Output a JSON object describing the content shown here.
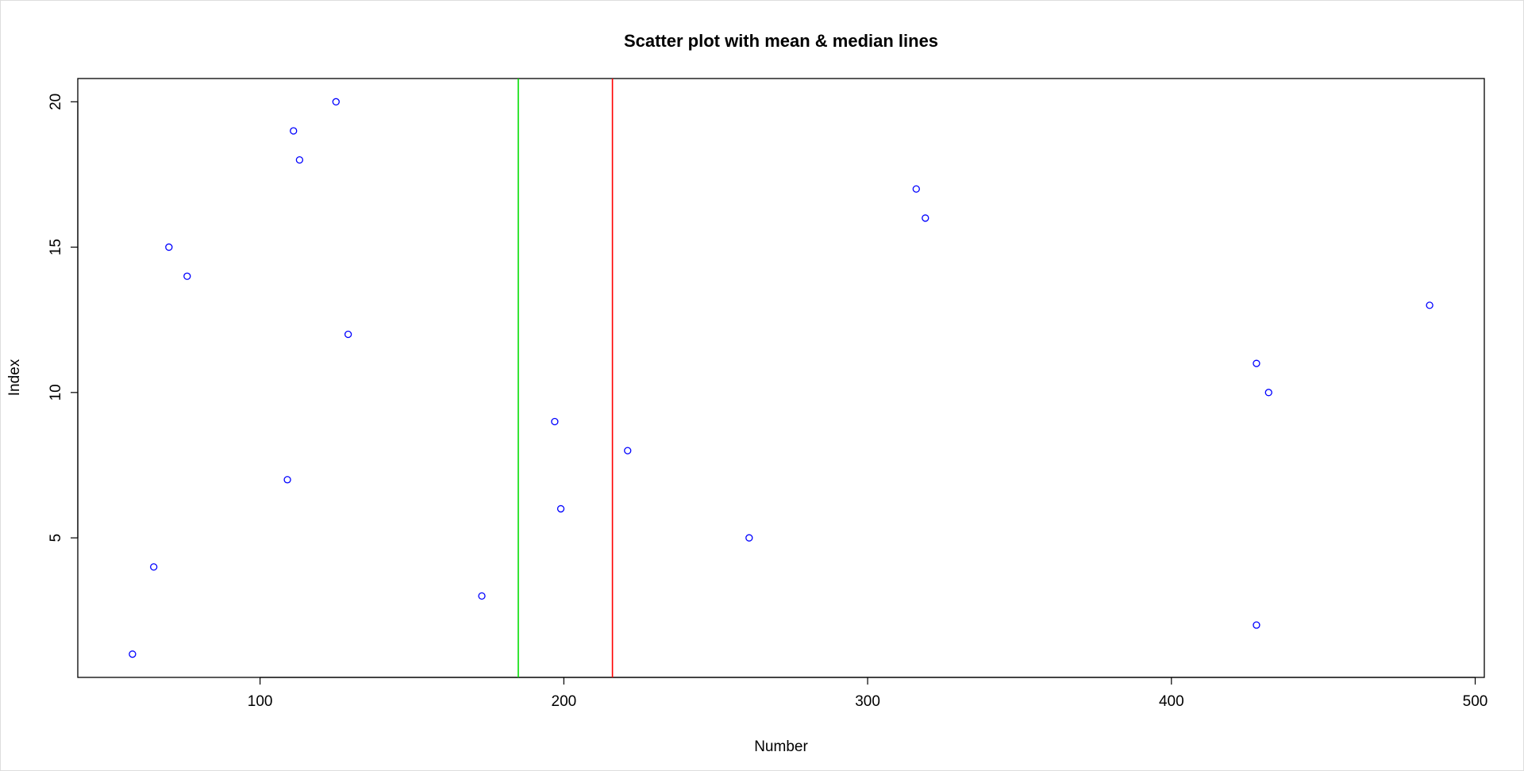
{
  "chart_data": {
    "type": "scatter",
    "title": "Scatter plot with mean & median lines",
    "xlabel": "Number",
    "ylabel": "Index",
    "xlim": [
      40,
      503
    ],
    "ylim": [
      0.2,
      20.8
    ],
    "xticks": [
      100,
      200,
      300,
      400,
      500
    ],
    "yticks": [
      5,
      10,
      15,
      20
    ],
    "grid": false,
    "points": [
      {
        "x": 58,
        "y": 1
      },
      {
        "x": 428,
        "y": 2
      },
      {
        "x": 173,
        "y": 3
      },
      {
        "x": 65,
        "y": 4
      },
      {
        "x": 261,
        "y": 5
      },
      {
        "x": 199,
        "y": 6
      },
      {
        "x": 109,
        "y": 7
      },
      {
        "x": 221,
        "y": 8
      },
      {
        "x": 197,
        "y": 9
      },
      {
        "x": 432,
        "y": 10
      },
      {
        "x": 428,
        "y": 11
      },
      {
        "x": 129,
        "y": 12
      },
      {
        "x": 485,
        "y": 13
      },
      {
        "x": 76,
        "y": 14
      },
      {
        "x": 70,
        "y": 15
      },
      {
        "x": 319,
        "y": 16
      },
      {
        "x": 316,
        "y": 17
      },
      {
        "x": 113,
        "y": 18
      },
      {
        "x": 111,
        "y": 19
      },
      {
        "x": 125,
        "y": 20
      }
    ],
    "vertical_lines": [
      {
        "x": 185,
        "color": "#00dd00"
      },
      {
        "x": 216,
        "color": "#ff0000"
      }
    ],
    "point_color": "#0000ff"
  }
}
